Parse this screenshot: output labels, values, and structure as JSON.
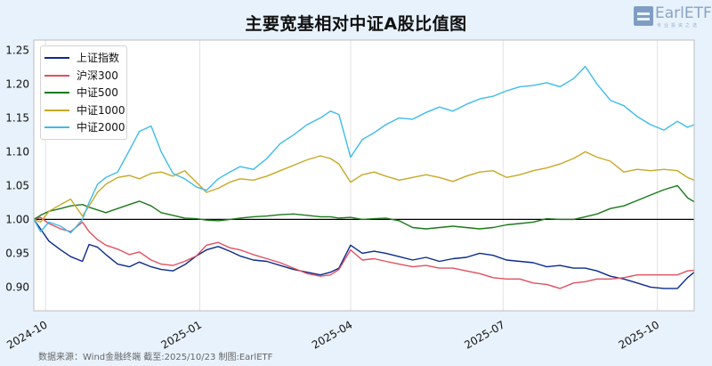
{
  "title": "主要宽基相对中证A股比值图",
  "logo": {
    "text": "EarlETF",
    "subtitle": "专业投资之选"
  },
  "source_text": "数据来源：Wind金融终端 截至:2025/10/23 制图:EarlETF",
  "colors": {
    "background": "#e8f2fc",
    "plot_bg": "#ffffff",
    "grid": "#e2e2e2",
    "baseline": "#000000"
  },
  "chart_data": {
    "type": "line",
    "title": "主要宽基相对中证A股比值图",
    "xlabel": "",
    "ylabel": "",
    "ylim": [
      0.865,
      1.265
    ],
    "yticks": [
      0.9,
      0.95,
      1.0,
      1.05,
      1.1,
      1.15,
      1.2,
      1.25
    ],
    "ytick_labels": [
      "0.90",
      "0.95",
      "1.00",
      "1.05",
      "1.10",
      "1.15",
      "1.20",
      "1.25"
    ],
    "xticks": [
      "2024-10",
      "2025-01",
      "2025-04",
      "2025-07",
      "2025-10"
    ],
    "x_range": [
      "2024-09-24",
      "2025-10-23"
    ],
    "grid": "vertical",
    "baseline": 1.0,
    "legend_position": "upper left",
    "x": [
      "2024-09-24",
      "2024-09-28",
      "2024-10-03",
      "2024-10-10",
      "2024-10-16",
      "2024-10-23",
      "2024-10-27",
      "2024-11-01",
      "2024-11-06",
      "2024-11-13",
      "2024-11-20",
      "2024-11-26",
      "2024-12-03",
      "2024-12-09",
      "2024-12-16",
      "2024-12-23",
      "2024-12-30",
      "2025-01-05",
      "2025-01-12",
      "2025-01-19",
      "2025-01-25",
      "2025-02-02",
      "2025-02-10",
      "2025-02-18",
      "2025-02-26",
      "2025-03-06",
      "2025-03-14",
      "2025-03-20",
      "2025-03-25",
      "2025-04-01",
      "2025-04-08",
      "2025-04-15",
      "2025-04-22",
      "2025-04-30",
      "2025-05-08",
      "2025-05-16",
      "2025-05-24",
      "2025-06-01",
      "2025-06-09",
      "2025-06-17",
      "2025-06-25",
      "2025-07-03",
      "2025-07-11",
      "2025-07-19",
      "2025-07-27",
      "2025-08-04",
      "2025-08-12",
      "2025-08-19",
      "2025-08-26",
      "2025-09-03",
      "2025-09-11",
      "2025-09-19",
      "2025-09-27",
      "2025-10-05",
      "2025-10-13",
      "2025-10-19",
      "2025-10-23"
    ],
    "series": [
      {
        "name": "上证指数",
        "color": "#0b2a8c",
        "values": [
          1.0,
          0.986,
          0.968,
          0.955,
          0.945,
          0.938,
          0.963,
          0.959,
          0.948,
          0.934,
          0.93,
          0.937,
          0.93,
          0.926,
          0.924,
          0.933,
          0.946,
          0.955,
          0.96,
          0.953,
          0.946,
          0.94,
          0.938,
          0.932,
          0.926,
          0.922,
          0.918,
          0.922,
          0.928,
          0.962,
          0.95,
          0.953,
          0.95,
          0.945,
          0.94,
          0.944,
          0.938,
          0.942,
          0.944,
          0.95,
          0.947,
          0.94,
          0.938,
          0.936,
          0.93,
          0.932,
          0.928,
          0.928,
          0.924,
          0.916,
          0.912,
          0.906,
          0.9,
          0.898,
          0.898,
          0.914,
          0.922
        ]
      },
      {
        "name": "沪深300",
        "color": "#e0505f",
        "values": [
          1.0,
          1.003,
          0.994,
          0.986,
          0.982,
          0.996,
          0.982,
          0.97,
          0.962,
          0.956,
          0.948,
          0.952,
          0.94,
          0.934,
          0.932,
          0.938,
          0.946,
          0.962,
          0.966,
          0.958,
          0.955,
          0.948,
          0.942,
          0.936,
          0.928,
          0.92,
          0.916,
          0.918,
          0.926,
          0.955,
          0.94,
          0.942,
          0.938,
          0.934,
          0.93,
          0.932,
          0.928,
          0.928,
          0.924,
          0.92,
          0.914,
          0.912,
          0.912,
          0.906,
          0.904,
          0.898,
          0.906,
          0.908,
          0.912,
          0.912,
          0.914,
          0.918,
          0.918,
          0.918,
          0.918,
          0.924,
          0.925
        ]
      },
      {
        "name": "中证500",
        "color": "#1a7a1a",
        "values": [
          1.0,
          1.006,
          1.012,
          1.016,
          1.02,
          1.022,
          1.018,
          1.014,
          1.01,
          1.016,
          1.022,
          1.027,
          1.02,
          1.01,
          1.006,
          1.002,
          1.001,
          0.999,
          0.998,
          1.0,
          1.002,
          1.004,
          1.005,
          1.007,
          1.008,
          1.006,
          1.004,
          1.004,
          1.002,
          1.003,
          1.0,
          1.001,
          1.002,
          0.998,
          0.988,
          0.986,
          0.988,
          0.99,
          0.988,
          0.986,
          0.988,
          0.992,
          0.994,
          0.996,
          1.001,
          1.0,
          1.0,
          1.004,
          1.008,
          1.016,
          1.02,
          1.028,
          1.036,
          1.044,
          1.05,
          1.032,
          1.026
        ]
      },
      {
        "name": "中证1000",
        "color": "#c8a826",
        "values": [
          1.0,
          0.996,
          1.012,
          1.022,
          1.03,
          1.005,
          1.02,
          1.04,
          1.052,
          1.062,
          1.065,
          1.06,
          1.068,
          1.07,
          1.064,
          1.072,
          1.055,
          1.04,
          1.046,
          1.055,
          1.06,
          1.058,
          1.064,
          1.072,
          1.08,
          1.088,
          1.094,
          1.09,
          1.082,
          1.055,
          1.066,
          1.07,
          1.064,
          1.058,
          1.062,
          1.066,
          1.062,
          1.056,
          1.064,
          1.07,
          1.072,
          1.062,
          1.066,
          1.072,
          1.076,
          1.082,
          1.09,
          1.1,
          1.092,
          1.086,
          1.07,
          1.074,
          1.072,
          1.074,
          1.072,
          1.062,
          1.058
        ]
      },
      {
        "name": "中证2000",
        "color": "#3ebbea",
        "values": [
          1.0,
          0.982,
          0.996,
          0.99,
          0.98,
          1.0,
          1.025,
          1.052,
          1.062,
          1.07,
          1.102,
          1.13,
          1.138,
          1.1,
          1.068,
          1.06,
          1.048,
          1.043,
          1.06,
          1.07,
          1.078,
          1.074,
          1.09,
          1.112,
          1.125,
          1.14,
          1.15,
          1.16,
          1.155,
          1.092,
          1.118,
          1.128,
          1.14,
          1.15,
          1.148,
          1.158,
          1.166,
          1.16,
          1.17,
          1.178,
          1.182,
          1.19,
          1.196,
          1.198,
          1.202,
          1.196,
          1.208,
          1.226,
          1.2,
          1.176,
          1.168,
          1.152,
          1.14,
          1.132,
          1.145,
          1.136,
          1.14
        ]
      }
    ]
  }
}
